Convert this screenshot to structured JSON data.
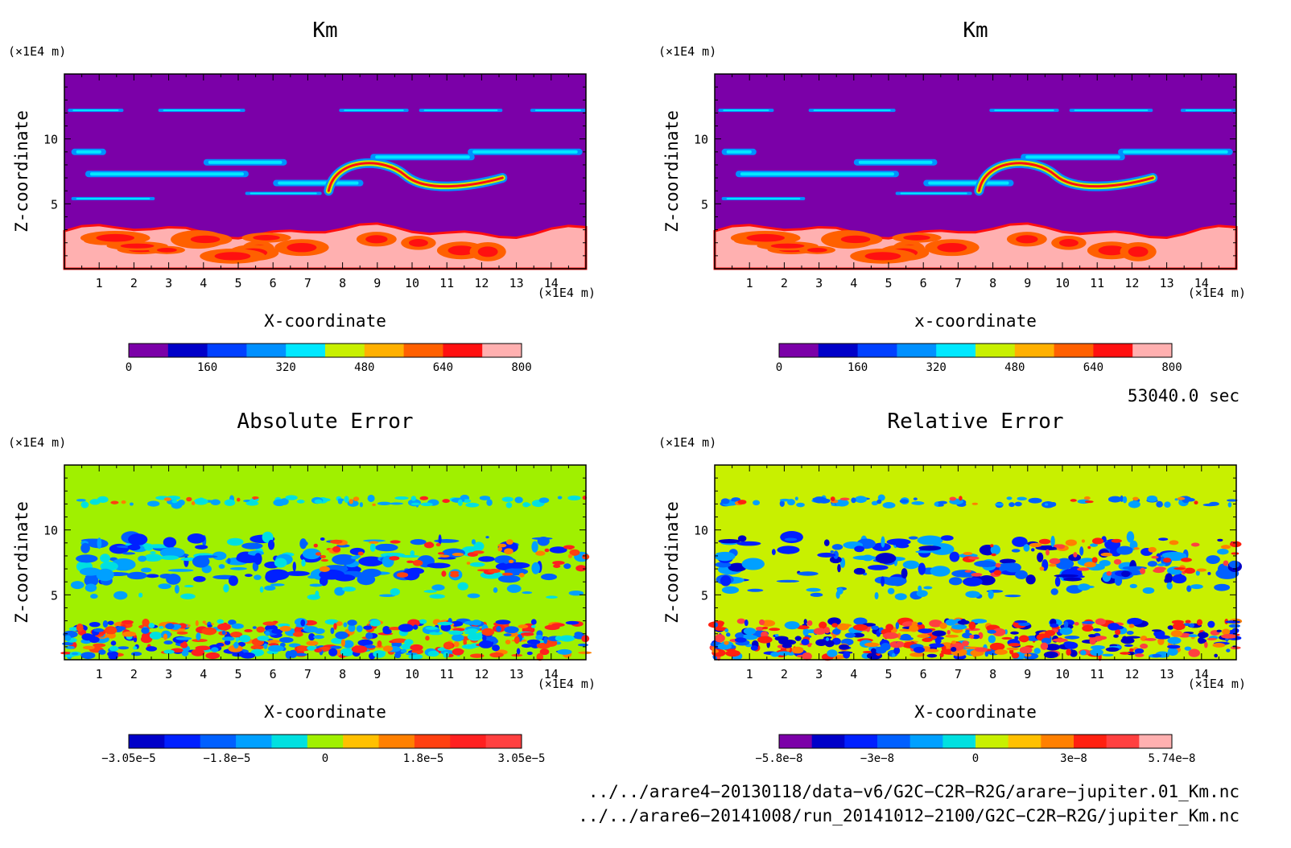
{
  "chart_data": [
    {
      "type": "heatmap",
      "title": "Km",
      "xlabel": "X-coordinate",
      "ylabel": "Z-coordinate",
      "x_unit": "(×1E4 m)",
      "y_unit": "(×1E4 m)",
      "xlim": [
        0,
        15
      ],
      "ylim": [
        0,
        15
      ],
      "x_ticks": [
        "1",
        "2",
        "3",
        "4",
        "5",
        "6",
        "7",
        "8",
        "9",
        "10",
        "11",
        "12",
        "13",
        "14"
      ],
      "y_ticks": [
        "5",
        "10"
      ],
      "pattern": "field",
      "colorbar": {
        "colors": [
          "#7b00a8",
          "#0000c8",
          "#0040ff",
          "#0090ff",
          "#00e8ff",
          "#c8f000",
          "#ffb000",
          "#ff6000",
          "#ff1010",
          "#ffb0b0"
        ],
        "tick_labels": [
          "0",
          "160",
          "320",
          "480",
          "640",
          "800"
        ]
      }
    },
    {
      "type": "heatmap",
      "title": "Km",
      "xlabel": "x-coordinate",
      "ylabel": "Z-coordinate",
      "x_unit": "(×1E4 m)",
      "y_unit": "(×1E4 m)",
      "xlim": [
        0,
        15
      ],
      "ylim": [
        0,
        15
      ],
      "x_ticks": [
        "1",
        "2",
        "3",
        "4",
        "5",
        "6",
        "7",
        "8",
        "9",
        "10",
        "11",
        "12",
        "13",
        "14"
      ],
      "y_ticks": [
        "5",
        "10"
      ],
      "pattern": "field",
      "colorbar": {
        "colors": [
          "#7b00a8",
          "#0000c8",
          "#0040ff",
          "#0090ff",
          "#00e8ff",
          "#c8f000",
          "#ffb000",
          "#ff6000",
          "#ff1010",
          "#ffb0b0"
        ],
        "tick_labels": [
          "0",
          "160",
          "320",
          "480",
          "640",
          "800"
        ]
      }
    },
    {
      "type": "heatmap",
      "title": "Absolute Error",
      "xlabel": "X-coordinate",
      "ylabel": "Z-coordinate",
      "x_unit": "(×1E4 m)",
      "y_unit": "(×1E4 m)",
      "xlim": [
        0,
        15
      ],
      "ylim": [
        0,
        15
      ],
      "x_ticks": [
        "1",
        "2",
        "3",
        "4",
        "5",
        "6",
        "7",
        "8",
        "9",
        "10",
        "11",
        "12",
        "13",
        "14"
      ],
      "y_ticks": [
        "5",
        "10"
      ],
      "pattern": "error",
      "colorbar": {
        "colors": [
          "#0000c8",
          "#0020ff",
          "#0060ff",
          "#00a0ff",
          "#00e0e0",
          "#a0f000",
          "#ffc000",
          "#ff8000",
          "#ff4010",
          "#ff2020",
          "#ff4040"
        ],
        "tick_labels": [
          "−3.05e−5",
          "−1.8e−5",
          "0",
          "1.8e−5",
          "3.05e−5"
        ]
      }
    },
    {
      "type": "heatmap",
      "title": "Relative Error",
      "xlabel": "X-coordinate",
      "ylabel": "Z-coordinate",
      "x_unit": "(×1E4 m)",
      "y_unit": "(×1E4 m)",
      "xlim": [
        0,
        15
      ],
      "ylim": [
        0,
        15
      ],
      "x_ticks": [
        "1",
        "2",
        "3",
        "4",
        "5",
        "6",
        "7",
        "8",
        "9",
        "10",
        "11",
        "12",
        "13",
        "14"
      ],
      "y_ticks": [
        "5",
        "10"
      ],
      "pattern": "error",
      "colorbar": {
        "colors": [
          "#7b00a8",
          "#0000c8",
          "#0020ff",
          "#0060ff",
          "#00a0ff",
          "#00e0e0",
          "#c8f000",
          "#ffc000",
          "#ff8000",
          "#ff2010",
          "#ff4040",
          "#ffb0b0"
        ],
        "tick_labels": [
          "−5.8e−8",
          "−3e−8",
          "0",
          "3e−8",
          "5.74e−8"
        ]
      }
    }
  ],
  "time_label": "53040.0 sec",
  "file_paths": [
    "../../arare4−20130118/data−v6/G2C−C2R−R2G/arare−jupiter.01_Km.nc",
    "../../arare6−20141008/run_20141012−2100/G2C−C2R−R2G/jupiter_Km.nc"
  ]
}
